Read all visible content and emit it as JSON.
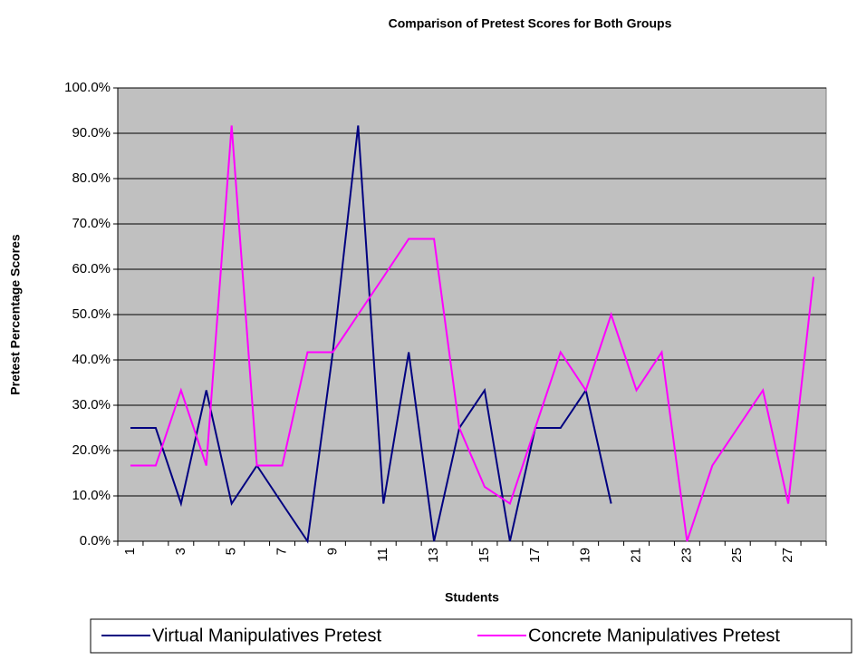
{
  "chart_data": {
    "type": "line",
    "title": "Comparison of Pretest Scores for Both Groups",
    "x_label": "Students",
    "y_label": "Pretest Percentage Scores",
    "categories": [
      1,
      null,
      3,
      null,
      5,
      null,
      7,
      null,
      9,
      null,
      11,
      null,
      13,
      null,
      15,
      null,
      17,
      null,
      19,
      null,
      21,
      null,
      23,
      null,
      25,
      null,
      27,
      null
    ],
    "series": [
      {
        "name": "Virtual Manipulatives Pretest",
        "color": "#000080",
        "values": [
          25,
          25,
          8.3,
          33.3,
          8.3,
          16.7,
          8.3,
          0,
          41.7,
          91.7,
          8.3,
          41.7,
          0,
          25,
          33.3,
          0,
          25,
          25,
          33.3,
          8.3,
          null,
          null,
          null,
          null,
          null,
          null,
          null,
          null
        ]
      },
      {
        "name": "Concrete Manipulatives Pretest",
        "color": "#ff00ff",
        "values": [
          16.7,
          16.7,
          33.3,
          16.7,
          91.7,
          16.7,
          16.7,
          41.7,
          41.7,
          50,
          58.3,
          66.7,
          66.7,
          25,
          12,
          8.3,
          25,
          41.7,
          33.3,
          50,
          33.3,
          41.7,
          0,
          16.7,
          25,
          33.3,
          8.3,
          58.3
        ]
      }
    ],
    "ylim": [
      0,
      100
    ],
    "yticks": [
      {
        "value": 0,
        "label": "0.0%"
      },
      {
        "value": 10,
        "label": "10.0%"
      },
      {
        "value": 20,
        "label": "20.0%"
      },
      {
        "value": 30,
        "label": "30.0%"
      },
      {
        "value": 40,
        "label": "40.0%"
      },
      {
        "value": 50,
        "label": "50.0%"
      },
      {
        "value": 60,
        "label": "60.0%"
      },
      {
        "value": 70,
        "label": "70.0%"
      },
      {
        "value": 80,
        "label": "80.0%"
      },
      {
        "value": 90,
        "label": "90.0%"
      },
      {
        "value": 100,
        "label": "100.0%"
      }
    ],
    "grid": true,
    "legend": "bottom",
    "plot_background": "#c0c0c0"
  }
}
